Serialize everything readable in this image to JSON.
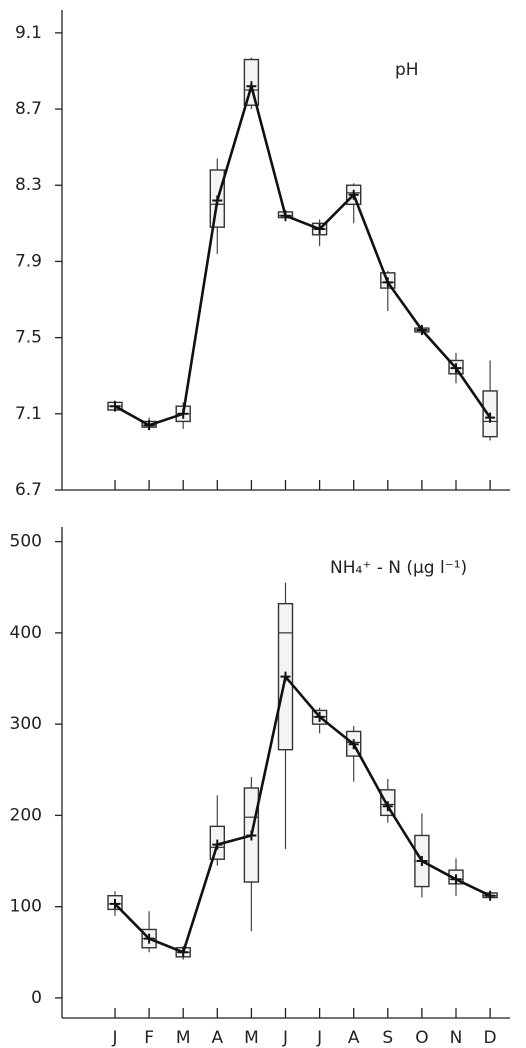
{
  "chart_data": [
    {
      "type": "box",
      "annotation": "pH",
      "categories": [
        null,
        null,
        null,
        null,
        null,
        null,
        null,
        null,
        null,
        null,
        null,
        null
      ],
      "mean": [
        7.14,
        7.04,
        7.1,
        8.22,
        8.82,
        8.14,
        8.07,
        8.25,
        7.79,
        7.54,
        7.34,
        7.08
      ],
      "min": [
        7.11,
        7.02,
        7.02,
        7.94,
        8.7,
        8.11,
        7.98,
        8.1,
        7.64,
        7.52,
        7.26,
        6.96
      ],
      "q1": [
        7.12,
        7.03,
        7.06,
        8.08,
        8.72,
        8.13,
        8.04,
        8.2,
        7.76,
        7.53,
        7.31,
        6.98
      ],
      "median": [
        7.14,
        7.04,
        7.1,
        8.2,
        8.8,
        8.14,
        8.07,
        8.26,
        7.79,
        7.54,
        7.34,
        7.06
      ],
      "q3": [
        7.16,
        7.06,
        7.14,
        8.38,
        8.96,
        8.16,
        8.1,
        8.3,
        7.84,
        7.55,
        7.38,
        7.22
      ],
      "max": [
        7.17,
        7.08,
        7.16,
        8.44,
        8.97,
        8.17,
        8.12,
        8.31,
        7.85,
        7.56,
        7.42,
        7.38
      ],
      "ylim": [
        6.7,
        9.22
      ],
      "yticks": [
        6.7,
        7.1,
        7.5,
        7.9,
        8.3,
        8.7,
        9.1
      ]
    },
    {
      "type": "box",
      "annotation": "NH₄⁺ - N (µg l⁻¹)",
      "categories": [
        "J",
        "F",
        "M",
        "A",
        "M",
        "J",
        "J",
        "A",
        "S",
        "O",
        "N",
        "D"
      ],
      "mean": [
        103,
        65,
        50,
        168,
        178,
        352,
        308,
        278,
        210,
        150,
        130,
        112
      ],
      "min": [
        90,
        50,
        42,
        145,
        73,
        163,
        290,
        237,
        192,
        110,
        112,
        108
      ],
      "q1": [
        97,
        55,
        45,
        152,
        127,
        272,
        300,
        265,
        200,
        122,
        125,
        110
      ],
      "median": [
        103,
        65,
        50,
        165,
        198,
        400,
        308,
        280,
        212,
        150,
        130,
        112
      ],
      "q3": [
        112,
        75,
        55,
        188,
        230,
        432,
        315,
        292,
        228,
        178,
        140,
        115
      ],
      "max": [
        117,
        95,
        57,
        222,
        242,
        455,
        318,
        298,
        240,
        202,
        153,
        117
      ],
      "ylim": [
        -22,
        516
      ],
      "yticks": [
        0,
        100,
        200,
        300,
        400,
        500
      ]
    }
  ]
}
